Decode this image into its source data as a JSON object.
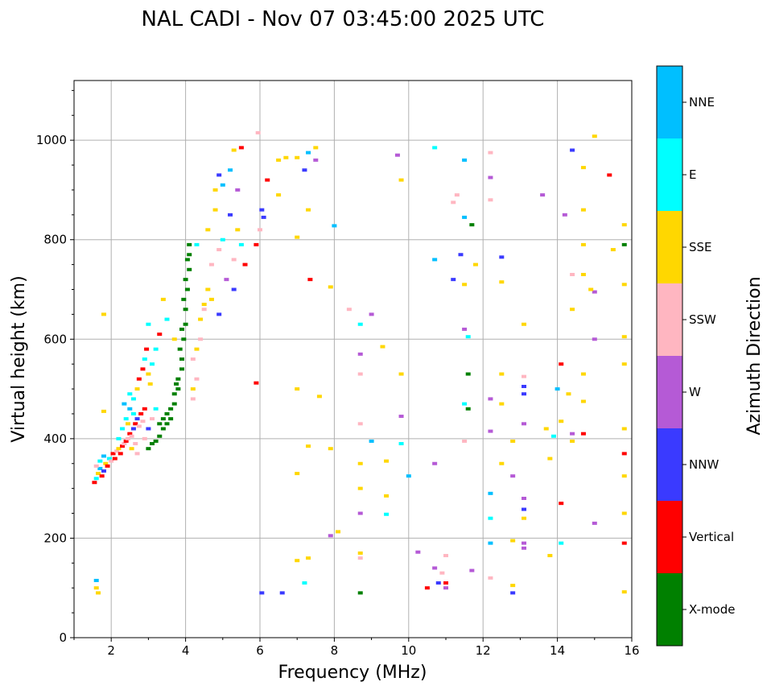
{
  "chart_data": {
    "type": "scatter",
    "title": "NAL CADI - Nov 07 03:45:00 2025 UTC",
    "xlabel": "Frequency (MHz)",
    "ylabel": "Virtual height (km)",
    "xlim": [
      1,
      16
    ],
    "ylim": [
      0,
      1120
    ],
    "xticks": [
      2,
      4,
      6,
      8,
      10,
      12,
      14,
      16
    ],
    "yticks": [
      0,
      200,
      400,
      600,
      800,
      1000
    ],
    "grid": true,
    "colorbar": {
      "label": "Azimuth Direction",
      "categories": [
        "X-mode",
        "Vertical",
        "NNW",
        "W",
        "SSW",
        "SSE",
        "E",
        "NNE"
      ],
      "colors": [
        "#008000",
        "#ff0000",
        "#3a3aff",
        "#b55ad6",
        "#ffb6c1",
        "#ffd700",
        "#00ffff",
        "#00bfff"
      ]
    },
    "point_format": [
      "frequency_mhz",
      "virtual_height_km",
      "direction_index"
    ],
    "points": [
      [
        1.55,
        312,
        1
      ],
      [
        1.6,
        320,
        6
      ],
      [
        1.65,
        330,
        5
      ],
      [
        1.7,
        340,
        7
      ],
      [
        1.6,
        345,
        4
      ],
      [
        1.75,
        325,
        1
      ],
      [
        1.8,
        335,
        2
      ],
      [
        1.85,
        350,
        5
      ],
      [
        1.9,
        345,
        1
      ],
      [
        1.95,
        360,
        6
      ],
      [
        2.0,
        355,
        4
      ],
      [
        2.05,
        370,
        1
      ],
      [
        1.7,
        355,
        6
      ],
      [
        1.8,
        365,
        7
      ],
      [
        2.1,
        360,
        1
      ],
      [
        2.15,
        375,
        4
      ],
      [
        2.2,
        380,
        5
      ],
      [
        2.25,
        370,
        1
      ],
      [
        2.3,
        385,
        1
      ],
      [
        2.35,
        390,
        4
      ],
      [
        2.4,
        395,
        1
      ],
      [
        2.45,
        400,
        4
      ],
      [
        2.5,
        410,
        1
      ],
      [
        2.55,
        405,
        4
      ],
      [
        2.6,
        420,
        2
      ],
      [
        2.65,
        430,
        1
      ],
      [
        2.7,
        440,
        2
      ],
      [
        2.75,
        425,
        4
      ],
      [
        2.8,
        450,
        1
      ],
      [
        2.85,
        435,
        4
      ],
      [
        2.9,
        460,
        1
      ],
      [
        2.2,
        400,
        6
      ],
      [
        2.3,
        420,
        6
      ],
      [
        2.4,
        440,
        6
      ],
      [
        2.5,
        460,
        7
      ],
      [
        2.6,
        480,
        6
      ],
      [
        2.7,
        500,
        5
      ],
      [
        2.75,
        520,
        1
      ],
      [
        2.85,
        540,
        1
      ],
      [
        2.9,
        560,
        6
      ],
      [
        2.95,
        580,
        1
      ],
      [
        3.0,
        530,
        5
      ],
      [
        3.05,
        510,
        5
      ],
      [
        2.5,
        490,
        6
      ],
      [
        2.6,
        450,
        6
      ],
      [
        2.35,
        470,
        7
      ],
      [
        2.45,
        430,
        5
      ],
      [
        2.55,
        380,
        5
      ],
      [
        2.65,
        390,
        4
      ],
      [
        2.7,
        370,
        4
      ],
      [
        2.9,
        400,
        4
      ],
      [
        3.0,
        420,
        2
      ],
      [
        3.1,
        440,
        4
      ],
      [
        3.2,
        460,
        6
      ],
      [
        3.0,
        380,
        0
      ],
      [
        3.1,
        390,
        0
      ],
      [
        3.2,
        395,
        0
      ],
      [
        3.3,
        405,
        0
      ],
      [
        3.4,
        420,
        0
      ],
      [
        3.5,
        430,
        0
      ],
      [
        3.5,
        450,
        0
      ],
      [
        3.6,
        440,
        0
      ],
      [
        3.7,
        470,
        0
      ],
      [
        3.7,
        490,
        0
      ],
      [
        3.8,
        500,
        0
      ],
      [
        3.8,
        520,
        0
      ],
      [
        3.9,
        540,
        0
      ],
      [
        3.9,
        560,
        0
      ],
      [
        3.95,
        600,
        0
      ],
      [
        4.0,
        630,
        0
      ],
      [
        4.0,
        660,
        0
      ],
      [
        4.05,
        700,
        0
      ],
      [
        4.1,
        740,
        0
      ],
      [
        4.1,
        770,
        0
      ],
      [
        4.1,
        790,
        0
      ],
      [
        3.95,
        680,
        0
      ],
      [
        3.9,
        620,
        0
      ],
      [
        3.6,
        460,
        0
      ],
      [
        3.4,
        440,
        0
      ],
      [
        3.3,
        430,
        0
      ],
      [
        4.0,
        720,
        0
      ],
      [
        4.05,
        760,
        0
      ],
      [
        3.85,
        580,
        0
      ],
      [
        3.75,
        510,
        0
      ],
      [
        4.2,
        480,
        4
      ],
      [
        4.3,
        520,
        4
      ],
      [
        4.2,
        560,
        4
      ],
      [
        4.3,
        580,
        5
      ],
      [
        4.4,
        640,
        5
      ],
      [
        4.5,
        660,
        4
      ],
      [
        4.6,
        700,
        5
      ],
      [
        4.7,
        750,
        4
      ],
      [
        4.9,
        780,
        4
      ],
      [
        5.1,
        720,
        3
      ],
      [
        5.3,
        760,
        4
      ],
      [
        4.4,
        600,
        4
      ],
      [
        4.2,
        500,
        5
      ],
      [
        4.5,
        670,
        5
      ],
      [
        4.7,
        680,
        5
      ],
      [
        4.8,
        860,
        5
      ],
      [
        4.8,
        900,
        5
      ],
      [
        5.0,
        910,
        7
      ],
      [
        5.2,
        940,
        7
      ],
      [
        5.3,
        980,
        5
      ],
      [
        5.4,
        900,
        3
      ],
      [
        5.5,
        985,
        1
      ],
      [
        4.9,
        930,
        2
      ],
      [
        4.6,
        820,
        5
      ],
      [
        5.2,
        850,
        2
      ],
      [
        5.5,
        790,
        6
      ],
      [
        5.0,
        800,
        6
      ],
      [
        4.3,
        790,
        6
      ],
      [
        5.4,
        820,
        5
      ],
      [
        5.6,
        750,
        1
      ],
      [
        5.3,
        700,
        2
      ],
      [
        4.9,
        650,
        2
      ],
      [
        3.7,
        600,
        5
      ],
      [
        3.5,
        640,
        6
      ],
      [
        3.3,
        610,
        1
      ],
      [
        3.2,
        580,
        6
      ],
      [
        3.0,
        630,
        6
      ],
      [
        3.4,
        680,
        5
      ],
      [
        3.1,
        550,
        6
      ],
      [
        1.8,
        650,
        5
      ],
      [
        1.8,
        455,
        5
      ],
      [
        1.6,
        100,
        5
      ],
      [
        1.6,
        115,
        7
      ],
      [
        1.65,
        90,
        5
      ],
      [
        5.95,
        1015,
        4
      ],
      [
        6.0,
        820,
        4
      ],
      [
        6.05,
        860,
        2
      ],
      [
        6.1,
        845,
        2
      ],
      [
        6.2,
        920,
        1
      ],
      [
        6.5,
        960,
        5
      ],
      [
        6.5,
        890,
        5
      ],
      [
        6.7,
        965,
        5
      ],
      [
        7.0,
        965,
        5
      ],
      [
        7.2,
        940,
        2
      ],
      [
        7.3,
        975,
        7
      ],
      [
        7.5,
        985,
        5
      ],
      [
        7.5,
        960,
        3
      ],
      [
        7.3,
        860,
        5
      ],
      [
        7.0,
        805,
        5
      ],
      [
        7.35,
        720,
        1
      ],
      [
        7.9,
        705,
        5
      ],
      [
        8.0,
        828,
        7
      ],
      [
        8.4,
        660,
        4
      ],
      [
        8.7,
        630,
        6
      ],
      [
        8.7,
        570,
        3
      ],
      [
        8.7,
        530,
        4
      ],
      [
        8.7,
        430,
        4
      ],
      [
        8.7,
        350,
        5
      ],
      [
        8.7,
        300,
        5
      ],
      [
        8.7,
        250,
        3
      ],
      [
        8.7,
        170,
        5
      ],
      [
        8.7,
        160,
        4
      ],
      [
        8.7,
        90,
        0
      ],
      [
        9.0,
        650,
        3
      ],
      [
        9.3,
        585,
        5
      ],
      [
        9.8,
        530,
        5
      ],
      [
        9.8,
        445,
        3
      ],
      [
        9.0,
        395,
        7
      ],
      [
        9.4,
        355,
        5
      ],
      [
        9.4,
        285,
        5
      ],
      [
        9.4,
        248,
        6
      ],
      [
        9.8,
        390,
        6
      ],
      [
        9.7,
        970,
        3
      ],
      [
        9.8,
        920,
        5
      ],
      [
        10.0,
        325,
        7
      ],
      [
        10.25,
        172,
        3
      ],
      [
        10.7,
        985,
        6
      ],
      [
        10.7,
        760,
        7
      ],
      [
        10.7,
        350,
        3
      ],
      [
        10.7,
        140,
        3
      ],
      [
        10.8,
        110,
        2
      ],
      [
        11.0,
        110,
        1
      ],
      [
        11.0,
        165,
        4
      ],
      [
        11.0,
        100,
        3
      ],
      [
        11.2,
        875,
        4
      ],
      [
        11.2,
        720,
        2
      ],
      [
        11.3,
        890,
        4
      ],
      [
        11.4,
        770,
        2
      ],
      [
        11.5,
        960,
        7
      ],
      [
        11.5,
        845,
        7
      ],
      [
        11.5,
        710,
        5
      ],
      [
        11.5,
        620,
        3
      ],
      [
        11.5,
        470,
        6
      ],
      [
        11.5,
        395,
        4
      ],
      [
        11.6,
        530,
        0
      ],
      [
        11.6,
        460,
        0
      ],
      [
        11.7,
        830,
        0
      ],
      [
        11.6,
        605,
        6
      ],
      [
        11.8,
        750,
        5
      ],
      [
        11.7,
        135,
        3
      ],
      [
        12.2,
        975,
        4
      ],
      [
        12.2,
        925,
        3
      ],
      [
        12.2,
        880,
        4
      ],
      [
        12.5,
        765,
        2
      ],
      [
        12.5,
        715,
        5
      ],
      [
        12.5,
        530,
        5
      ],
      [
        12.5,
        470,
        5
      ],
      [
        12.2,
        480,
        3
      ],
      [
        12.2,
        415,
        3
      ],
      [
        12.2,
        290,
        7
      ],
      [
        12.2,
        240,
        6
      ],
      [
        12.2,
        190,
        7
      ],
      [
        12.2,
        120,
        4
      ],
      [
        12.5,
        350,
        5
      ],
      [
        12.8,
        395,
        5
      ],
      [
        12.8,
        325,
        3
      ],
      [
        12.8,
        195,
        5
      ],
      [
        12.8,
        105,
        5
      ],
      [
        12.8,
        90,
        2
      ],
      [
        13.1,
        630,
        5
      ],
      [
        13.1,
        525,
        4
      ],
      [
        13.1,
        505,
        2
      ],
      [
        13.1,
        490,
        2
      ],
      [
        13.1,
        430,
        3
      ],
      [
        13.1,
        280,
        3
      ],
      [
        13.1,
        258,
        2
      ],
      [
        13.1,
        240,
        5
      ],
      [
        13.1,
        190,
        3
      ],
      [
        13.1,
        180,
        3
      ],
      [
        13.6,
        890,
        3
      ],
      [
        13.7,
        420,
        5
      ],
      [
        13.8,
        360,
        5
      ],
      [
        13.8,
        165,
        5
      ],
      [
        14.0,
        500,
        7
      ],
      [
        14.1,
        550,
        1
      ],
      [
        14.1,
        435,
        5
      ],
      [
        14.1,
        270,
        1
      ],
      [
        14.1,
        190,
        6
      ],
      [
        14.2,
        850,
        3
      ],
      [
        14.4,
        980,
        2
      ],
      [
        14.4,
        730,
        4
      ],
      [
        14.4,
        660,
        5
      ],
      [
        14.3,
        490,
        5
      ],
      [
        14.4,
        395,
        5
      ],
      [
        14.7,
        945,
        5
      ],
      [
        14.7,
        860,
        5
      ],
      [
        14.7,
        730,
        5
      ],
      [
        14.7,
        530,
        5
      ],
      [
        14.7,
        475,
        5
      ],
      [
        14.7,
        410,
        1
      ],
      [
        15.0,
        1008,
        5
      ],
      [
        15.0,
        695,
        3
      ],
      [
        15.0,
        600,
        3
      ],
      [
        15.0,
        230,
        3
      ],
      [
        15.4,
        930,
        1
      ],
      [
        15.5,
        780,
        5
      ],
      [
        15.8,
        830,
        5
      ],
      [
        15.8,
        790,
        0
      ],
      [
        15.8,
        710,
        5
      ],
      [
        15.8,
        605,
        5
      ],
      [
        15.8,
        550,
        5
      ],
      [
        15.8,
        420,
        5
      ],
      [
        15.8,
        370,
        1
      ],
      [
        15.8,
        325,
        5
      ],
      [
        15.8,
        250,
        5
      ],
      [
        15.8,
        190,
        1
      ],
      [
        15.8,
        92,
        5
      ],
      [
        14.7,
        790,
        5
      ],
      [
        14.9,
        700,
        5
      ],
      [
        14.4,
        410,
        3
      ],
      [
        13.9,
        405,
        6
      ],
      [
        10.5,
        100,
        1
      ],
      [
        10.9,
        130,
        4
      ],
      [
        7.2,
        110,
        6
      ],
      [
        6.6,
        90,
        2
      ],
      [
        6.05,
        90,
        2
      ],
      [
        7.9,
        205,
        3
      ],
      [
        8.1,
        213,
        5
      ],
      [
        7.3,
        160,
        5
      ],
      [
        7.0,
        155,
        5
      ],
      [
        7.0,
        330,
        5
      ],
      [
        7.3,
        385,
        5
      ],
      [
        7.9,
        380,
        5
      ],
      [
        7.6,
        485,
        5
      ],
      [
        7.0,
        500,
        5
      ],
      [
        5.9,
        512,
        1
      ],
      [
        5.9,
        790,
        1
      ]
    ]
  }
}
